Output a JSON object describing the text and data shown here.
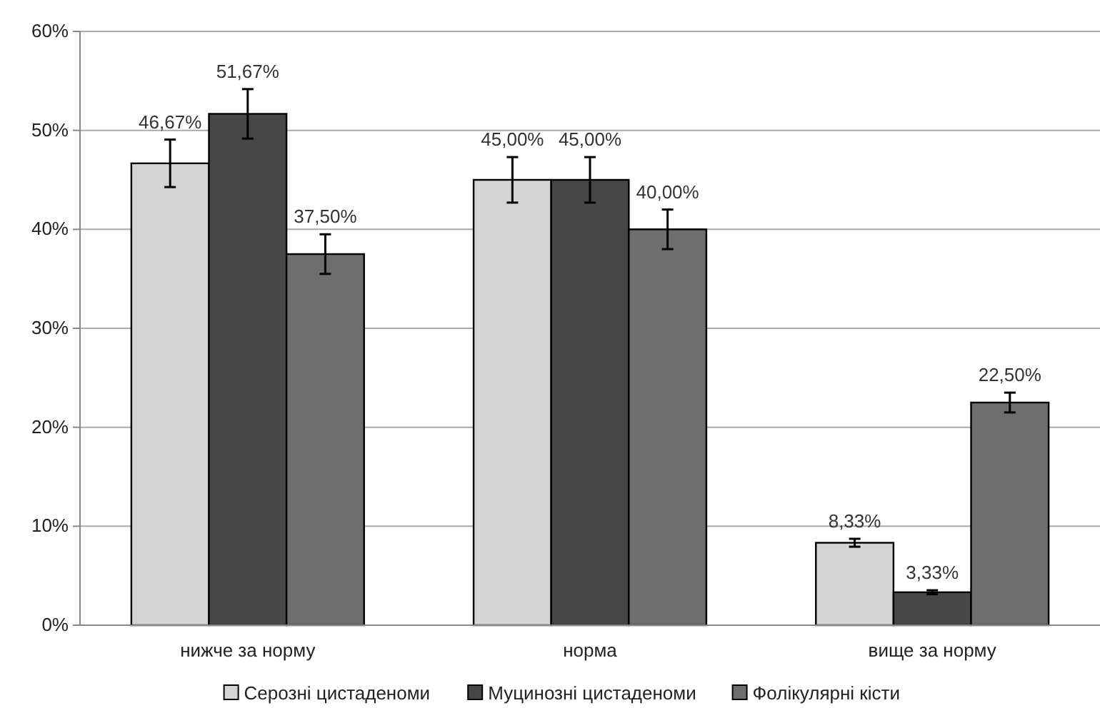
{
  "chart_data": {
    "type": "bar",
    "categories": [
      "нижче за норму",
      "норма",
      "вище за норму"
    ],
    "series": [
      {
        "name": "Серозні цистаденоми",
        "color": "#d4d4d4",
        "values": [
          46.67,
          45,
          8.33
        ],
        "errors": [
          2.4,
          2.3,
          0.4
        ],
        "value_labels": [
          "46,67%",
          "45,00%",
          "8,33%"
        ]
      },
      {
        "name": "Муцинозні цистаденоми",
        "color": "#474747",
        "values": [
          51.67,
          45,
          3.33
        ],
        "errors": [
          2.5,
          2.3,
          0.2
        ],
        "value_labels": [
          "51,67%",
          "45,00%",
          "3,33%"
        ]
      },
      {
        "name": "Фолікулярні кісти",
        "color": "#6e6e6e",
        "values": [
          37.5,
          40,
          22.5
        ],
        "errors": [
          2,
          2,
          1
        ],
        "value_labels": [
          "37,50%",
          "40,00%",
          "22,50%"
        ]
      }
    ],
    "ylim": [
      0,
      60
    ],
    "yticks": [
      {
        "value": 0,
        "label": "0%"
      },
      {
        "value": 10,
        "label": "10%"
      },
      {
        "value": 20,
        "label": "20%"
      },
      {
        "value": 30,
        "label": "30%"
      },
      {
        "value": 40,
        "label": "40%"
      },
      {
        "value": 50,
        "label": "50%"
      },
      {
        "value": 60,
        "label": "60%"
      }
    ],
    "grid": "y",
    "legend": "bottom"
  }
}
